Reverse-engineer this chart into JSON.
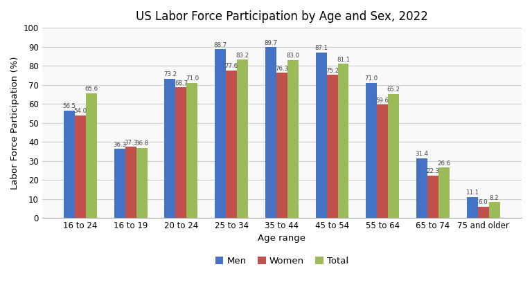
{
  "title": "US Labor Force Participation by Age and Sex, 2022",
  "xlabel": "Age range",
  "ylabel": "Labor Force Participation (%)",
  "categories": [
    "16 to 24",
    "16 to 19",
    "20 to 24",
    "25 to 34",
    "35 to 44",
    "45 to 54",
    "55 to 64",
    "65 to 74",
    "75 and older"
  ],
  "series": {
    "Men": [
      56.5,
      36.3,
      73.2,
      88.7,
      89.7,
      87.1,
      71.0,
      31.4,
      11.1
    ],
    "Women": [
      54.0,
      37.3,
      68.7,
      77.6,
      76.3,
      75.2,
      59.6,
      22.3,
      6.0
    ],
    "Total": [
      65.6,
      36.8,
      71.0,
      83.2,
      83.0,
      81.1,
      65.2,
      26.6,
      8.2
    ]
  },
  "colors": {
    "Men": "#4472C4",
    "Women": "#C0514D",
    "Total": "#9BBB59"
  },
  "ylim": [
    0,
    100
  ],
  "yticks": [
    0,
    10,
    20,
    30,
    40,
    50,
    60,
    70,
    80,
    90,
    100
  ],
  "legend_labels": [
    "Men",
    "Women",
    "Total"
  ],
  "bar_width": 0.22,
  "label_fontsize": 6.2,
  "title_fontsize": 12,
  "axis_label_fontsize": 9.5,
  "tick_fontsize": 8.5,
  "background_color": "#FFFFFF",
  "plot_bg_color": "#F9F9F9",
  "grid_color": "#D0D0D0"
}
